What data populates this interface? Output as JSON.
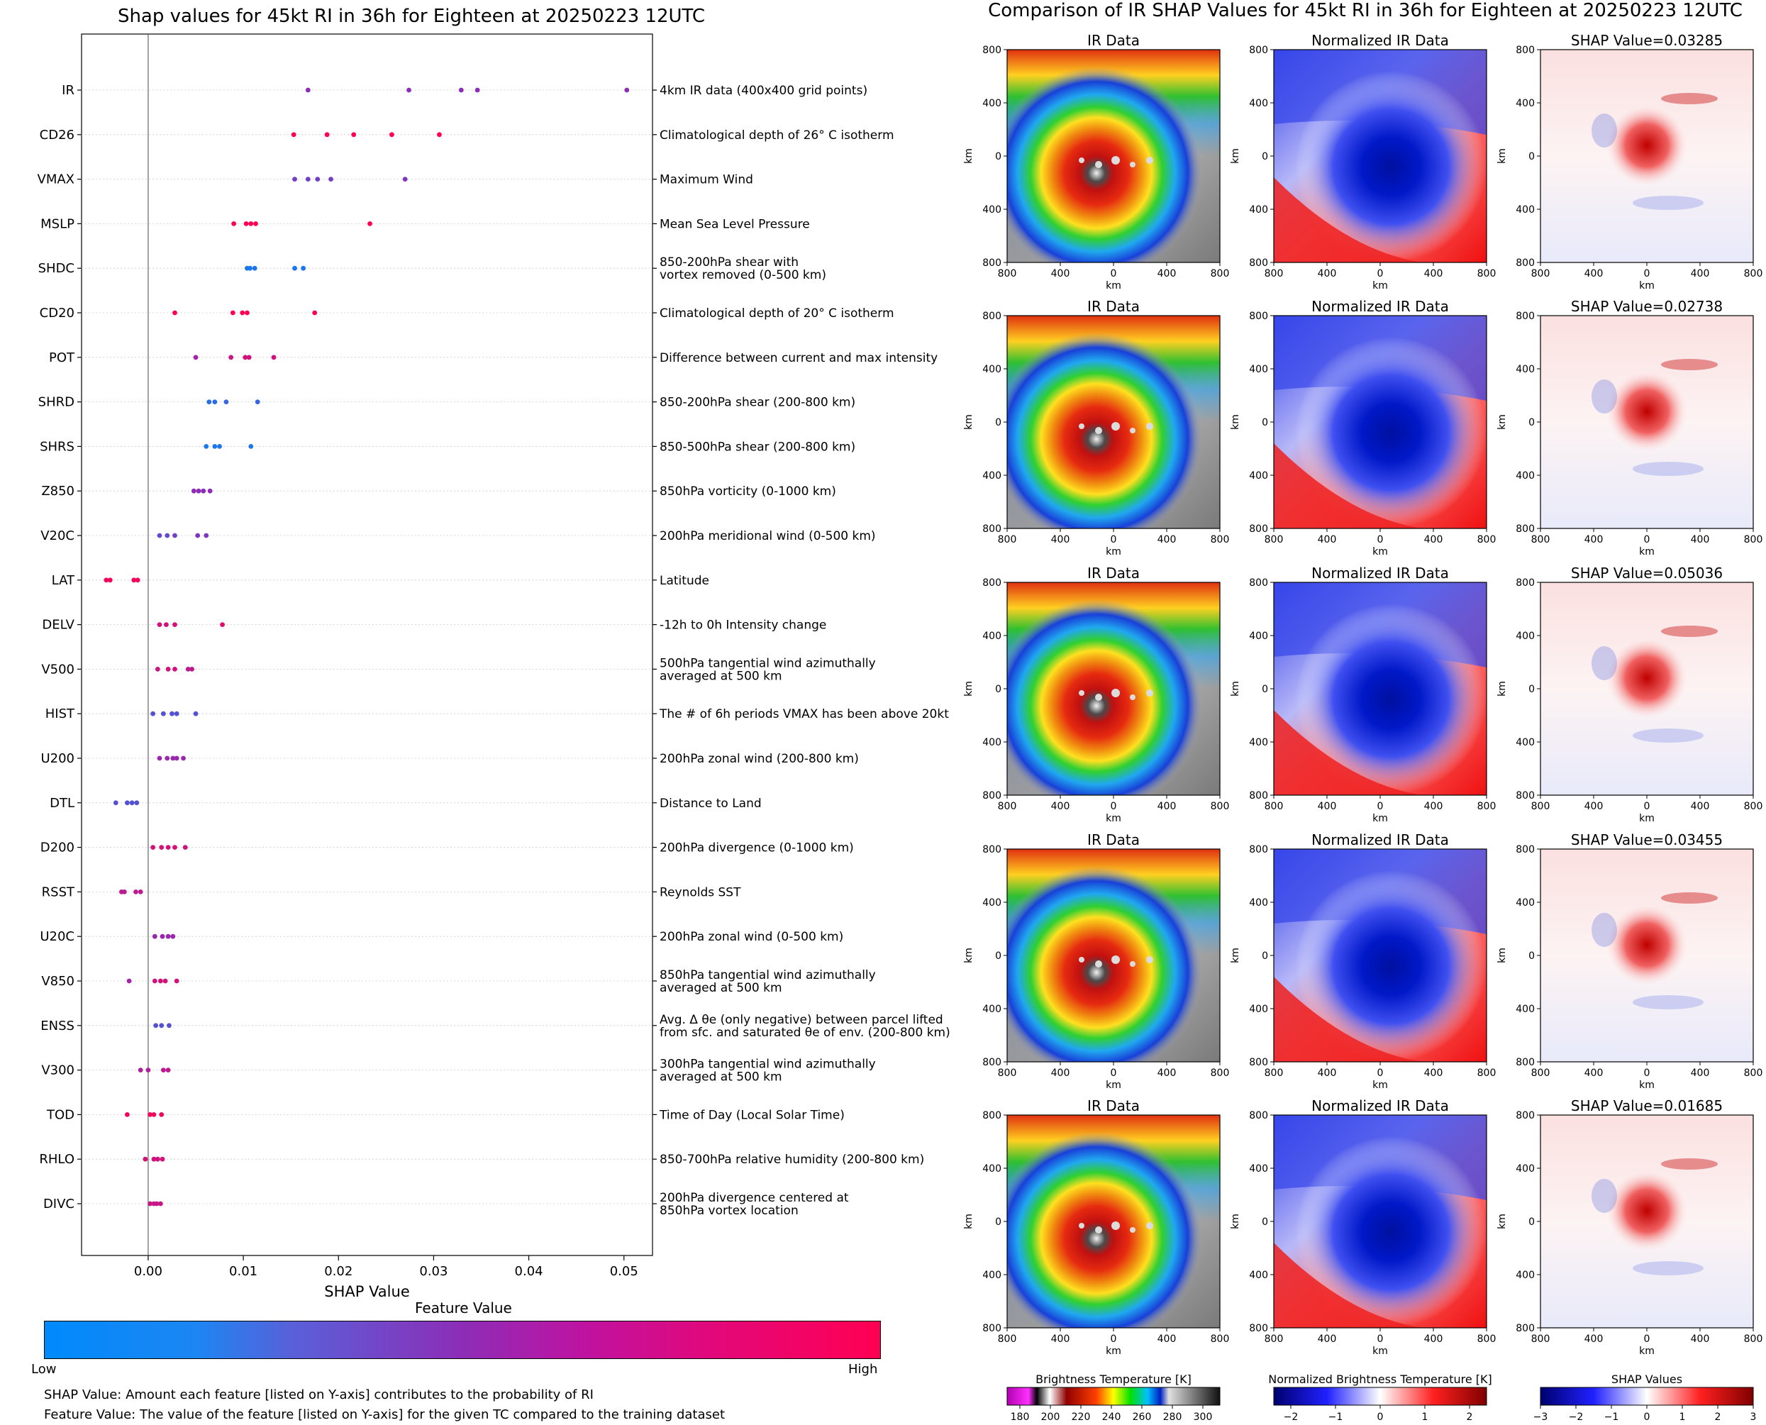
{
  "left_title": "Shap values for 45kt RI in 36h for Eighteen at 20250223 12UTC",
  "right_title": "Comparison of IR SHAP Values for 45kt RI in 36h for Eighteen at 20250223 12UTC",
  "colors": {
    "low": "#008afb",
    "mid": "#8d2db7",
    "high": "#ff0052"
  },
  "chart_data": {
    "type": "scatter",
    "title": "Shap values for 45kt RI in 36h for Eighteen at 20250223 12UTC",
    "xlabel": "SHAP Value",
    "xlim": [
      -0.007,
      0.053
    ],
    "xticks": [
      "0.00",
      "0.01",
      "0.02",
      "0.03",
      "0.04",
      "0.05"
    ],
    "features": [
      {
        "name": "IR",
        "description": "4km IR data (400x400 grid points)",
        "points": [
          [
            0.0168,
            0.5
          ],
          [
            0.0274,
            0.5
          ],
          [
            0.0329,
            0.5
          ],
          [
            0.0346,
            0.5
          ],
          [
            0.0503,
            0.5
          ]
        ]
      },
      {
        "name": "CD26",
        "description": "Climatological depth of 26° C isotherm",
        "points": [
          [
            0.0153,
            1
          ],
          [
            0.0188,
            1
          ],
          [
            0.0216,
            1
          ],
          [
            0.0256,
            1
          ],
          [
            0.0306,
            1
          ]
        ]
      },
      {
        "name": "VMAX",
        "description": "Maximum Wind",
        "points": [
          [
            0.0154,
            0.4
          ],
          [
            0.0168,
            0.4
          ],
          [
            0.0178,
            0.4
          ],
          [
            0.0192,
            0.4
          ],
          [
            0.027,
            0.45
          ]
        ]
      },
      {
        "name": "MSLP",
        "description": "Mean Sea Level Pressure",
        "points": [
          [
            0.009,
            1
          ],
          [
            0.0103,
            1
          ],
          [
            0.0108,
            1
          ],
          [
            0.0113,
            1
          ],
          [
            0.0233,
            1
          ]
        ]
      },
      {
        "name": "SHDC",
        "description": "850-200hPa shear with\nvortex removed (0-500 km)",
        "points": [
          [
            0.0104,
            0.1
          ],
          [
            0.0107,
            0.1
          ],
          [
            0.0112,
            0.1
          ],
          [
            0.0154,
            0.1
          ],
          [
            0.0163,
            0.1
          ]
        ]
      },
      {
        "name": "CD20",
        "description": "Climatological depth of 20° C isotherm",
        "points": [
          [
            0.0028,
            1
          ],
          [
            0.0089,
            1
          ],
          [
            0.0099,
            1
          ],
          [
            0.0104,
            1
          ],
          [
            0.0175,
            1
          ]
        ]
      },
      {
        "name": "POT",
        "description": "Difference between current and max intensity",
        "points": [
          [
            0.005,
            0.6
          ],
          [
            0.0087,
            0.75
          ],
          [
            0.0102,
            0.8
          ],
          [
            0.0106,
            0.8
          ],
          [
            0.0132,
            0.8
          ]
        ]
      },
      {
        "name": "SHRD",
        "description": "850-200hPa shear (200-800 km)",
        "points": [
          [
            0.0064,
            0.15
          ],
          [
            0.007,
            0.15
          ],
          [
            0.0082,
            0.2
          ],
          [
            0.0115,
            0.2
          ]
        ]
      },
      {
        "name": "SHRS",
        "description": "850-500hPa shear (200-800 km)",
        "points": [
          [
            0.0061,
            0.1
          ],
          [
            0.007,
            0.1
          ],
          [
            0.0075,
            0.1
          ],
          [
            0.0108,
            0.1
          ]
        ]
      },
      {
        "name": "Z850",
        "description": "850hPa vorticity (0-1000 km)",
        "points": [
          [
            0.0048,
            0.5
          ],
          [
            0.0053,
            0.5
          ],
          [
            0.0058,
            0.5
          ],
          [
            0.0065,
            0.5
          ]
        ]
      },
      {
        "name": "V20C",
        "description": "200hPa meridional wind (0-500 km)",
        "points": [
          [
            0.0012,
            0.35
          ],
          [
            0.002,
            0.35
          ],
          [
            0.0028,
            0.4
          ],
          [
            0.0052,
            0.45
          ],
          [
            0.0061,
            0.45
          ]
        ]
      },
      {
        "name": "LAT",
        "description": "Latitude",
        "points": [
          [
            -0.0044,
            0.95
          ],
          [
            -0.004,
            0.95
          ],
          [
            -0.0015,
            0.95
          ],
          [
            -0.0011,
            0.95
          ]
        ]
      },
      {
        "name": "DELV",
        "description": "-12h to 0h Intensity change",
        "points": [
          [
            0.0012,
            0.8
          ],
          [
            0.0019,
            0.8
          ],
          [
            0.0028,
            0.8
          ],
          [
            0.0078,
            0.85
          ]
        ]
      },
      {
        "name": "V500",
        "description": "500hPa tangential wind azimuthally\naveraged at 500 km",
        "points": [
          [
            0.001,
            0.75
          ],
          [
            0.0021,
            0.8
          ],
          [
            0.0028,
            0.8
          ],
          [
            0.0042,
            0.7
          ],
          [
            0.0046,
            0.7
          ]
        ]
      },
      {
        "name": "HIST",
        "description": "The # of 6h periods VMAX has been above 20kt",
        "points": [
          [
            0.0005,
            0.3
          ],
          [
            0.0016,
            0.3
          ],
          [
            0.0025,
            0.3
          ],
          [
            0.003,
            0.3
          ],
          [
            0.005,
            0.3
          ]
        ]
      },
      {
        "name": "U200",
        "description": "200hPa zonal wind (200-800 km)",
        "points": [
          [
            0.0012,
            0.55
          ],
          [
            0.002,
            0.55
          ],
          [
            0.0026,
            0.55
          ],
          [
            0.003,
            0.55
          ],
          [
            0.0037,
            0.55
          ]
        ]
      },
      {
        "name": "DTL",
        "description": "Distance to Land",
        "points": [
          [
            -0.0034,
            0.3
          ],
          [
            -0.0022,
            0.3
          ],
          [
            -0.0017,
            0.3
          ],
          [
            -0.0012,
            0.3
          ]
        ]
      },
      {
        "name": "D200",
        "description": "200hPa divergence (0-1000 km)",
        "points": [
          [
            0.0005,
            0.8
          ],
          [
            0.0014,
            0.8
          ],
          [
            0.0021,
            0.8
          ],
          [
            0.0028,
            0.8
          ],
          [
            0.0039,
            0.8
          ]
        ]
      },
      {
        "name": "RSST",
        "description": "Reynolds SST",
        "points": [
          [
            -0.0028,
            0.7
          ],
          [
            -0.0025,
            0.7
          ],
          [
            -0.0013,
            0.7
          ],
          [
            -0.0008,
            0.7
          ]
        ]
      },
      {
        "name": "U20C",
        "description": "200hPa zonal wind (0-500 km)",
        "points": [
          [
            0.0007,
            0.55
          ],
          [
            0.0015,
            0.55
          ],
          [
            0.0021,
            0.55
          ],
          [
            0.0026,
            0.55
          ]
        ]
      },
      {
        "name": "V850",
        "description": "850hPa tangential wind azimuthally\naveraged at 500 km",
        "points": [
          [
            -0.002,
            0.6
          ],
          [
            0.0007,
            0.8
          ],
          [
            0.0013,
            0.8
          ],
          [
            0.0018,
            0.8
          ],
          [
            0.003,
            0.8
          ]
        ]
      },
      {
        "name": "ENSS",
        "description": "Avg. Δ θe (only negative) between parcel lifted\nfrom sfc. and saturated θe of env. (200-800 km)",
        "points": [
          [
            0.0008,
            0.3
          ],
          [
            0.0014,
            0.3
          ],
          [
            0.0022,
            0.3
          ]
        ]
      },
      {
        "name": "V300",
        "description": "300hPa tangential wind azimuthally\naveraged at 500 km",
        "points": [
          [
            -0.0008,
            0.65
          ],
          [
            0.0,
            0.65
          ],
          [
            0.0016,
            0.7
          ],
          [
            0.0021,
            0.7
          ]
        ]
      },
      {
        "name": "TOD",
        "description": "Time of Day (Local Solar Time)",
        "points": [
          [
            -0.0022,
            0.95
          ],
          [
            0.0002,
            0.95
          ],
          [
            0.0006,
            0.95
          ],
          [
            0.0014,
            0.95
          ]
        ]
      },
      {
        "name": "RHLO",
        "description": "850-700hPa relative humidity (200-800 km)",
        "points": [
          [
            -0.0003,
            0.8
          ],
          [
            0.0006,
            0.8
          ],
          [
            0.001,
            0.8
          ],
          [
            0.0015,
            0.8
          ]
        ]
      },
      {
        "name": "DIVC",
        "description": "200hPa divergence centered at\n850hPa vortex location",
        "points": [
          [
            0.0002,
            0.75
          ],
          [
            0.0006,
            0.75
          ],
          [
            0.0009,
            0.75
          ],
          [
            0.0013,
            0.75
          ]
        ]
      }
    ]
  },
  "colorbar": {
    "title": "Feature Value",
    "low": "Low",
    "high": "High"
  },
  "notes": [
    "SHAP Value: Amount each feature [listed on Y-axis] contributes to the probability of RI",
    "Feature Value: The value of the feature [listed on Y-axis] for the given TC compared to the training dataset"
  ],
  "grid": {
    "column_titles": [
      "IR Data",
      "Normalized IR Data"
    ],
    "shap_titles": [
      "SHAP Value=0.03285",
      "SHAP Value=0.02738",
      "SHAP Value=0.05036",
      "SHAP Value=0.03455",
      "SHAP Value=0.01685"
    ],
    "axis_label": "km",
    "ticks": [
      "800",
      "400",
      "0",
      "400",
      "800"
    ]
  },
  "colorbars": [
    {
      "title": "Brightness Temperature [K]",
      "ticks": [
        "180",
        "200",
        "220",
        "240",
        "260",
        "280",
        "300"
      ]
    },
    {
      "title": "Normalized Brightness Temperature [K]",
      "ticks": [
        "−2",
        "−1",
        "0",
        "1",
        "2"
      ]
    },
    {
      "title": "SHAP Values",
      "ticks": [
        "−3",
        "−2",
        "−1",
        "0",
        "1",
        "2",
        "3"
      ],
      "offset": "1e−5"
    }
  ]
}
